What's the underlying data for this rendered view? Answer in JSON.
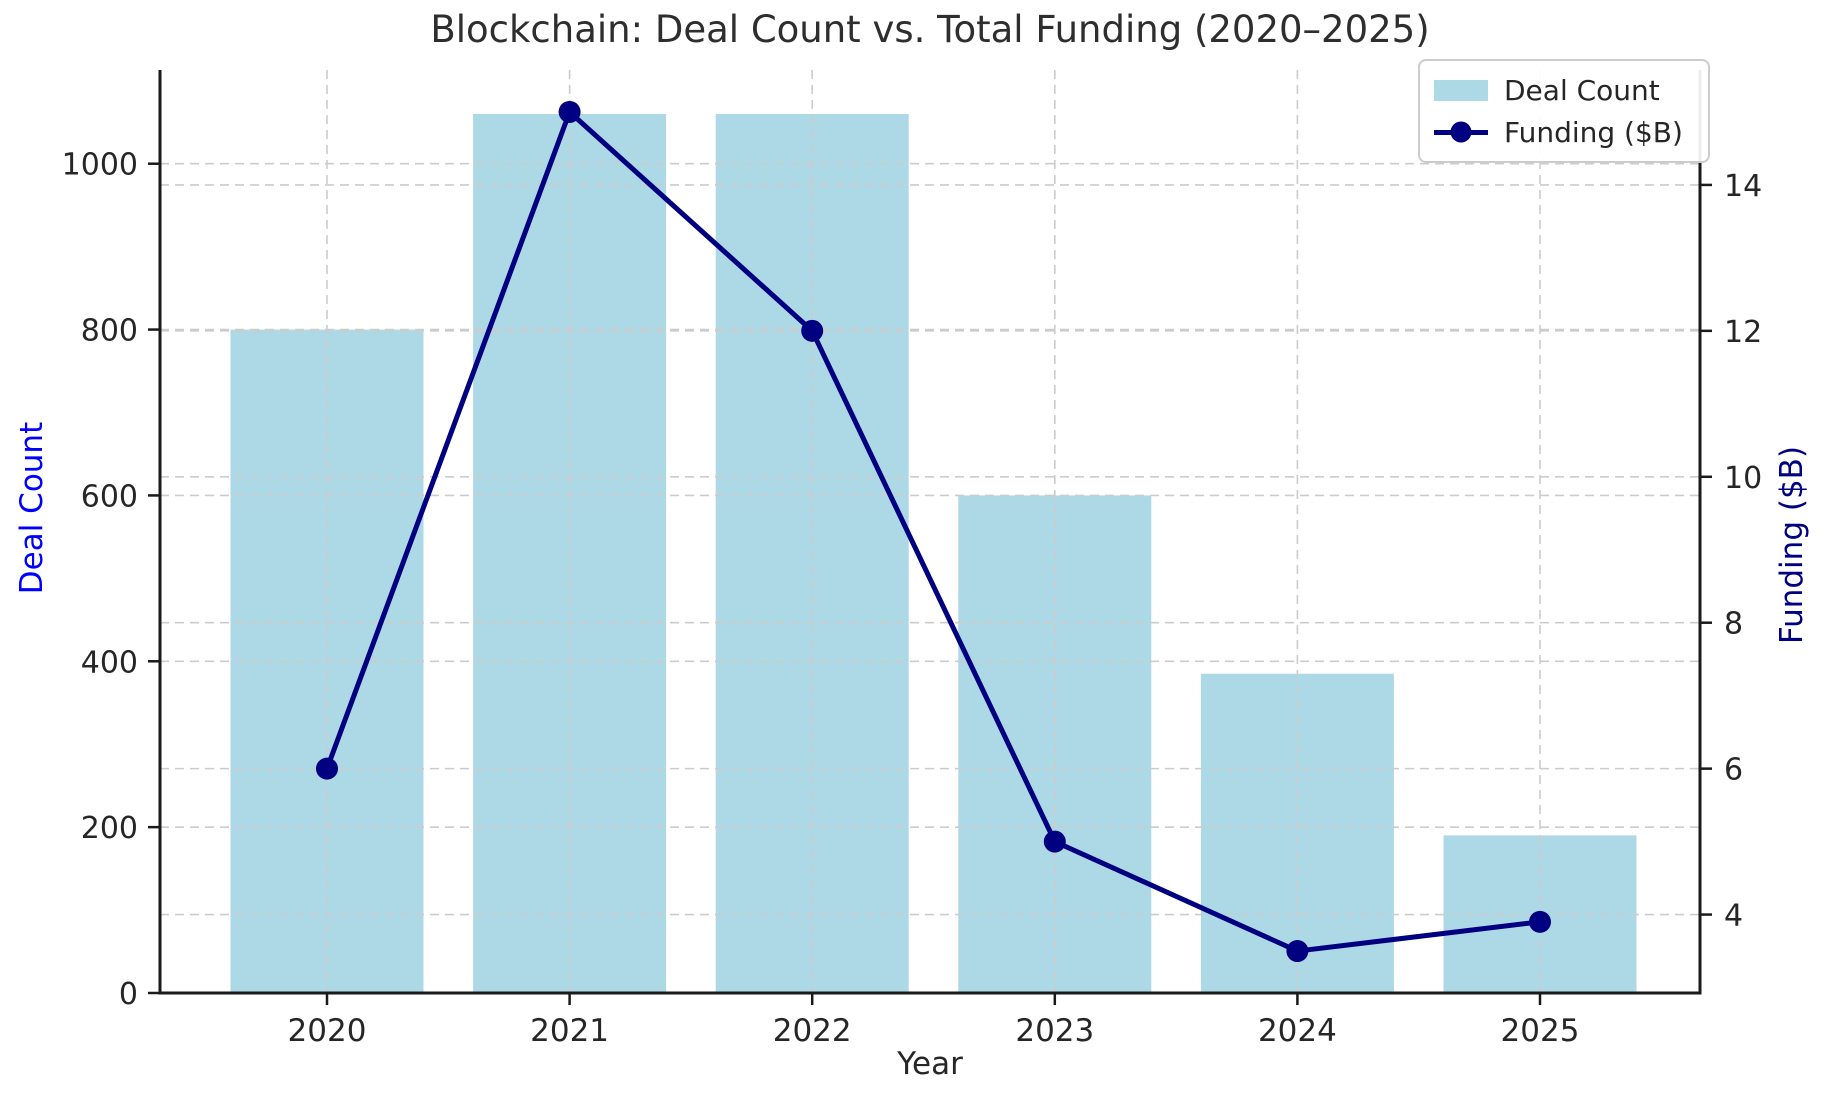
{
  "chart_data": {
    "type": "combo",
    "title": "Blockchain: Deal Count vs. Total Funding (2020–2025)",
    "xlabel": "Year",
    "categories": [
      "2020",
      "2021",
      "2022",
      "2023",
      "2024",
      "2025"
    ],
    "series": [
      {
        "name": "Deal Count",
        "type": "bar",
        "axis": "left",
        "color": "#ADD8E6",
        "values": [
          800,
          1060,
          1060,
          600,
          385,
          190
        ]
      },
      {
        "name": "Funding ($B)",
        "type": "line",
        "axis": "right",
        "color": "#000080",
        "marker": "circle",
        "values": [
          6.0,
          15.0,
          12.0,
          5.0,
          3.5,
          3.9
        ]
      }
    ],
    "left_axis": {
      "label": "Deal Count",
      "color": "#0000FF",
      "ticks": [
        0,
        200,
        400,
        600,
        800,
        1000
      ],
      "lim": [
        0,
        1113
      ]
    },
    "right_axis": {
      "label": "Funding ($B)",
      "color": "#000080",
      "ticks": [
        4,
        6,
        8,
        10,
        12,
        14
      ],
      "lim": [
        2.925,
        15.575
      ]
    },
    "grid": {
      "on": true,
      "color": "#CCCCCC",
      "style": "dashed"
    },
    "legend": {
      "position": "upper right",
      "entries": [
        "Deal Count",
        "Funding ($B)"
      ]
    },
    "tick_label_color": "#262626",
    "spine_color": "#1a1a1a"
  }
}
